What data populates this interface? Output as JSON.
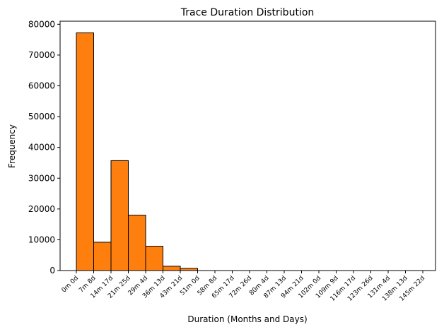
{
  "chart_data": {
    "type": "bar",
    "title": "Trace Duration Distribution",
    "xlabel": "Duration (Months and Days)",
    "ylabel": "Frequency",
    "ylim": [
      0,
      81000
    ],
    "yticks": [
      0,
      10000,
      20000,
      30000,
      40000,
      50000,
      60000,
      70000,
      80000
    ],
    "xtick_labels": [
      "0m 0d",
      "7m 8d",
      "14m 17d",
      "21m 25d",
      "29m 4d",
      "36m 13d",
      "43m 21d",
      "51m 0d",
      "58m 8d",
      "65m 17d",
      "72m 26d",
      "80m 4d",
      "87m 13d",
      "94m 21d",
      "102m 0d",
      "109m 9d",
      "116m 17d",
      "123m 26d",
      "131m 4d",
      "138m 13d",
      "145m 22d"
    ],
    "values": [
      77200,
      9200,
      35700,
      18000,
      7900,
      1400,
      700,
      0,
      0,
      0,
      0,
      0,
      0,
      0,
      0,
      0,
      0,
      0,
      0,
      0
    ],
    "bar_color": "#ff7f0e",
    "edge_color": "#000000",
    "grid": false,
    "legend": false
  }
}
